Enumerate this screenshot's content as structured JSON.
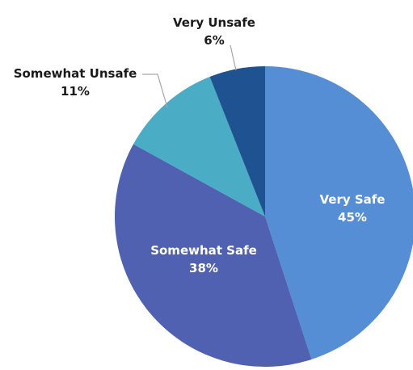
{
  "chart_data": {
    "type": "pie",
    "title": "",
    "slices": [
      {
        "label": "Very Safe",
        "value": 45,
        "value_label": "45%",
        "color": "#558ed5",
        "label_position": "inside"
      },
      {
        "label": "Somewhat Safe",
        "value": 38,
        "value_label": "38%",
        "color": "#4f61b0",
        "label_position": "inside"
      },
      {
        "label": "Somewhat Unsafe",
        "value": 11,
        "value_label": "11%",
        "color": "#4bacc6",
        "label_position": "outside"
      },
      {
        "label": "Very Unsafe",
        "value": 6,
        "value_label": "6%",
        "color": "#1f5291",
        "label_position": "outside"
      }
    ],
    "start_angle_deg": 0,
    "direction": "clockwise",
    "legend": "none"
  }
}
